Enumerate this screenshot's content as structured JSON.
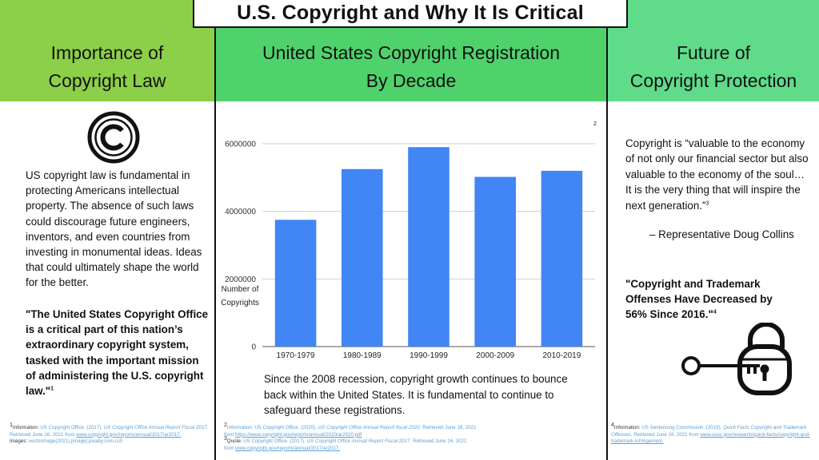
{
  "title": "U.S. Copyright and Why It Is Critical",
  "left": {
    "heading_line1": "Importance of",
    "heading_line2": "Copyright Law",
    "body": "US copyright law is fundamental in protecting Americans intellectual property. The absence of such laws could discourage future engineers, inventors, and even countries from investing in monumental ideas. Ideas that could ultimately shape the world for the better.",
    "quote": "\"The United States Copyright Office is a critical part of this nation’s extraordinary copyright system, tasked with the important mission of administering the U.S. copyright law.\"",
    "quote_ref": "1"
  },
  "middle": {
    "heading_line1": "United States Copyright Registration",
    "heading_line2": "By Decade",
    "chart_ref": "2",
    "body": "Since the 2008 recession, copyright growth continues to bounce back within the United States. It is fundamental to continue to safeguard these registrations."
  },
  "right": {
    "heading_line1": "Future of",
    "heading_line2": "Copyright Protection",
    "quote": "Copyright is “valuable to the economy of not only our financial sector but also valuable to the economy of the soul… It is the very thing that will inspire the next generation.”",
    "quote_ref": "3",
    "attribution": "– Representative Doug Collins",
    "stat": "\"Copyright and Trademark Offenses Have Decreased by 56% Since 2016.\"",
    "stat_ref": "4"
  },
  "chart_data": {
    "type": "bar",
    "categories": [
      "1970-1979",
      "1980-1989",
      "1990-1999",
      "2000-2009",
      "2010-2019"
    ],
    "values": [
      3750000,
      5250000,
      5900000,
      5020000,
      5200000
    ],
    "title": "",
    "xlabel": "",
    "ylabel": "Number of Copyrights",
    "ylim": [
      0,
      6000000
    ],
    "yticks": [
      0,
      2000000,
      4000000,
      6000000
    ],
    "grid": true,
    "bar_color": "#4285f4"
  },
  "footnotes": {
    "left": {
      "num": "1",
      "label": "Information: ",
      "citation_a": "US Copyright Office. (2017). ",
      "citation_title": "US Copyright Office Annual Report Fiscal 2017",
      "citation_b": ". Retrieved June 16, 2021 from ",
      "url": "www.copyright.gov/reports/annual/2017/ar2017.",
      "images_label": "Images: ",
      "images_text": "vectorimage(2021).[image].pixaby.com,cc0"
    },
    "middle": {
      "num1": "2",
      "info_label": "Information: ",
      "info_a": "US Copyright Office. (2020). ",
      "info_title": "US Copyright Office Annual Report fiscal 2020",
      "info_b": ". Retrieved June 18, 2021 from ",
      "info_url": "https://www.copyright.gov/reports/annual/2020/ar2020.pdf",
      "num2": "3",
      "quote_label": "Quote: ",
      "quote_a": "US Copyright Office. (2017). ",
      "quote_title": "US Copyright Office Annual Report Fiscal 2017",
      "quote_b": ". Retrieved June 16, 2021 from ",
      "quote_url": "www.copyright.gov/reports/annual/2017/ar2017."
    },
    "right": {
      "num": "4",
      "label": "Information: ",
      "citation_a": "US Sentencing Commission. (2019). ",
      "citation_title": "Quick Facts Copyright and Trademark Offenses",
      "citation_b": ". Retrieved June 16, 2021 from ",
      "url": "www.ussc.gov/research/quick-facts/copyright-and-trademark-infringement."
    }
  },
  "colors": {
    "left_band": "#8ccf48",
    "mid_band": "#4fd26c",
    "right_band": "#5fdb8a",
    "link": "#5aa0d8"
  },
  "icons": {
    "left": "copyright-icon",
    "right": "padlock-key-icon"
  }
}
